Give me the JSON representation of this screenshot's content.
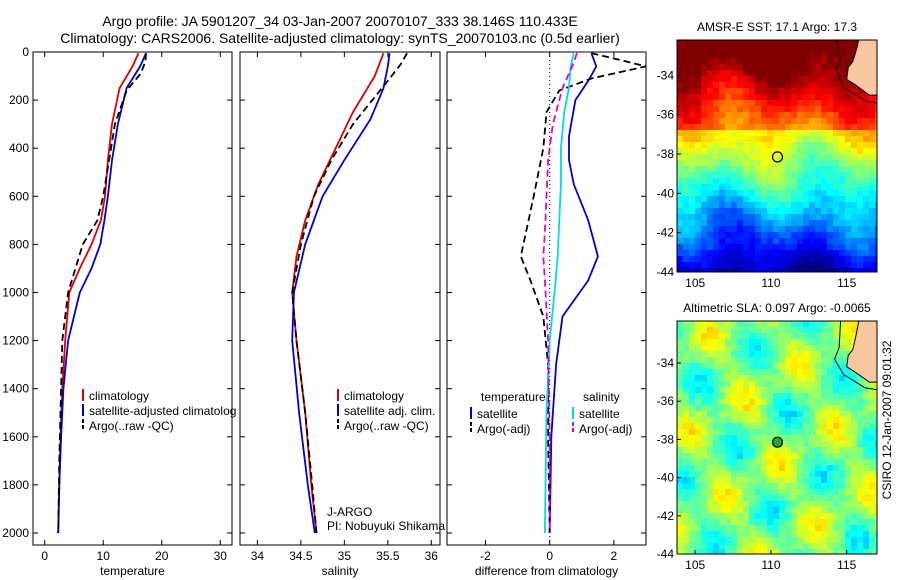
{
  "title_line1": "Argo profile: JA 5901207_34 03-Jan-2007 20070107_333 38.146S 110.433E",
  "title_line2": "Climatology: CARS2006. Satellite-adjusted climatology: synTS_20070103.nc (0.5d earlier)",
  "side_label": "CSIRO 12-Jan-2007 09:01:32",
  "chart_data": [
    {
      "type": "line",
      "panel": "temperature",
      "xlabel": "temperature",
      "xlim": [
        -2,
        32
      ],
      "ylim": [
        0,
        2050
      ],
      "xticks": [
        0,
        10,
        20,
        30
      ],
      "yticks": [
        0,
        200,
        400,
        600,
        800,
        1000,
        1200,
        1400,
        1600,
        1800,
        2000
      ],
      "y_reversed": true,
      "legend": [
        {
          "label": "climatology",
          "color": "#dd0000",
          "dash": "solid"
        },
        {
          "label": "satellite-adjusted climatolog",
          "color": "#0000cc",
          "dash": "solid"
        },
        {
          "label": "Argo(..raw -QC)",
          "color": "#000000",
          "dash": "dashed"
        }
      ],
      "series": [
        {
          "name": "climatology",
          "color": "#dd0000",
          "dash": "solid",
          "x": [
            16.0,
            15.0,
            12.8,
            11.5,
            10.8,
            10.3,
            9.6,
            8.0,
            6.0,
            4.2,
            3.5,
            3.0,
            2.7,
            2.5,
            2.3
          ],
          "y": [
            5,
            60,
            150,
            300,
            450,
            600,
            700,
            800,
            900,
            1000,
            1200,
            1400,
            1600,
            1800,
            2000
          ]
        },
        {
          "name": "satellite-adjusted climatology",
          "color": "#0000cc",
          "dash": "solid",
          "x": [
            17.3,
            16.3,
            14.0,
            12.5,
            11.5,
            10.8,
            10.2,
            9.5,
            8.0,
            6.0,
            4.0,
            3.2,
            2.8,
            2.5,
            2.3
          ],
          "y": [
            5,
            60,
            150,
            300,
            450,
            600,
            700,
            800,
            900,
            1000,
            1200,
            1400,
            1600,
            1800,
            2000
          ]
        },
        {
          "name": "Argo(..raw -QC)",
          "color": "#000000",
          "dash": "dashed",
          "x": [
            17.3,
            17.2,
            16.4,
            14.0,
            12.0,
            11.0,
            10.0,
            9.0,
            6.5,
            4.0,
            3.0,
            2.8,
            2.5,
            2.3
          ],
          "y": [
            5,
            40,
            90,
            160,
            300,
            450,
            600,
            700,
            800,
            1000,
            1200,
            1400,
            1700,
            2000
          ]
        }
      ]
    },
    {
      "type": "line",
      "panel": "salinity",
      "xlabel": "salinity",
      "xlim": [
        33.8,
        36.1
      ],
      "ylim": [
        0,
        2050
      ],
      "xticks": [
        34,
        34.5,
        35,
        35.5,
        36
      ],
      "y_reversed": true,
      "legend": [
        {
          "label": "climatology",
          "color": "#dd0000",
          "dash": "solid"
        },
        {
          "label": "satellite adj. clim.",
          "color": "#0000cc",
          "dash": "solid"
        },
        {
          "label": "Argo(..raw -QC)",
          "color": "#000000",
          "dash": "dashed"
        }
      ],
      "annotations": [
        "J-ARGO",
        "PI: Nobuyuki Shikama"
      ],
      "series": [
        {
          "name": "climatology",
          "color": "#dd0000",
          "dash": "solid",
          "x": [
            35.45,
            35.35,
            35.1,
            34.9,
            34.7,
            34.55,
            34.45,
            34.4,
            34.45,
            34.55,
            34.62,
            34.68
          ],
          "y": [
            5,
            100,
            250,
            400,
            550,
            700,
            850,
            1000,
            1200,
            1500,
            1800,
            2000
          ]
        },
        {
          "name": "satellite adj. clim.",
          "color": "#0000cc",
          "dash": "solid",
          "x": [
            35.52,
            35.5,
            35.45,
            35.3,
            35.0,
            34.75,
            34.55,
            34.42,
            34.4,
            34.48,
            34.58,
            34.66
          ],
          "y": [
            5,
            60,
            150,
            280,
            450,
            600,
            800,
            1000,
            1200,
            1500,
            1800,
            2000
          ]
        },
        {
          "name": "Argo(..raw -QC)",
          "color": "#000000",
          "dash": "dashed",
          "x": [
            35.72,
            35.65,
            35.5,
            35.1,
            34.85,
            34.65,
            34.5,
            34.4,
            34.45,
            34.55,
            34.63,
            34.68
          ],
          "y": [
            5,
            50,
            120,
            300,
            450,
            600,
            800,
            1000,
            1200,
            1500,
            1800,
            2000
          ]
        }
      ]
    },
    {
      "type": "line",
      "panel": "difference",
      "xlabel": "difference from climatology",
      "xlim": [
        -3.2,
        3.0
      ],
      "ylim": [
        0,
        2050
      ],
      "xticks": [
        -2,
        0,
        2
      ],
      "y_reversed": true,
      "zero_line": 0,
      "legend_titles": [
        "temperature",
        "salinity"
      ],
      "legend": [
        {
          "label": "satellite",
          "color": "#0000cc",
          "dash": "solid",
          "column": 0
        },
        {
          "label": "Argo(-adj)",
          "color": "#000000",
          "dash": "dashed",
          "column": 0
        },
        {
          "label": "satellite",
          "color": "#00dddd",
          "dash": "solid",
          "column": 1
        },
        {
          "label": "Argo(-adj)",
          "color": "#dd00dd",
          "dash": "dashed",
          "column": 1
        }
      ],
      "series": [
        {
          "name": "temperature satellite",
          "color": "#0000cc",
          "dash": "solid",
          "x": [
            1.3,
            1.45,
            1.2,
            0.8,
            0.6,
            0.6,
            0.75,
            1.2,
            1.5,
            1.2,
            0.4,
            0.2,
            0.05,
            0.0
          ],
          "y": [
            5,
            60,
            120,
            200,
            350,
            450,
            550,
            700,
            850,
            950,
            1100,
            1300,
            1600,
            2000
          ]
        },
        {
          "name": "temperature Argo(-adj)",
          "color": "#000000",
          "dash": "dashed",
          "x": [
            1.3,
            2.1,
            3.0,
            1.3,
            0.3,
            -0.1,
            -0.2,
            -0.5,
            -0.9,
            -0.6,
            -0.2,
            -0.05,
            -0.05,
            0.0
          ],
          "y": [
            5,
            30,
            60,
            110,
            160,
            250,
            400,
            600,
            850,
            950,
            1100,
            1300,
            1600,
            2000
          ]
        },
        {
          "name": "salinity satellite",
          "color": "#00dddd",
          "dash": "solid",
          "x": [
            0.75,
            0.65,
            0.6,
            0.45,
            0.35,
            0.35,
            0.3,
            0.25,
            0.15,
            0.0,
            -0.1,
            -0.15
          ],
          "y": [
            5,
            60,
            150,
            250,
            400,
            550,
            700,
            850,
            1000,
            1200,
            1500,
            2000
          ]
        },
        {
          "name": "salinity Argo(-adj)",
          "color": "#dd00dd",
          "dash": "dashed",
          "x": [
            0.85,
            0.7,
            0.4,
            0.1,
            -0.05,
            -0.1,
            -0.15,
            -0.2,
            -0.15,
            -0.05,
            0.0,
            0.0
          ],
          "y": [
            5,
            60,
            150,
            300,
            450,
            600,
            750,
            850,
            950,
            1200,
            1600,
            2000
          ]
        }
      ]
    },
    {
      "type": "heatmap",
      "panel": "sst_map",
      "title": "AMSR-E SST: 17.1 Argo: 17.3",
      "xlim": [
        103.8,
        117.0
      ],
      "ylim": [
        -44.0,
        -32.2
      ],
      "xticks": [
        105,
        110,
        115
      ],
      "yticks": [
        -34,
        -36,
        -38,
        -40,
        -42,
        -44
      ],
      "marker": {
        "lon": 110.433,
        "lat": -38.146,
        "fill": "none"
      },
      "palette": "jet"
    },
    {
      "type": "heatmap",
      "panel": "sla_map",
      "title": "Altimetric SLA: 0.097 Argo: -0.0065",
      "xlim": [
        103.8,
        117.0
      ],
      "ylim": [
        -44.0,
        -31.8
      ],
      "xticks": [
        105,
        110,
        115
      ],
      "yticks": [
        -34,
        -36,
        -38,
        -40,
        -42,
        -44
      ],
      "marker": {
        "lon": 110.433,
        "lat": -38.146,
        "fill": "#22aa22"
      },
      "palette": "jet-centered"
    }
  ]
}
